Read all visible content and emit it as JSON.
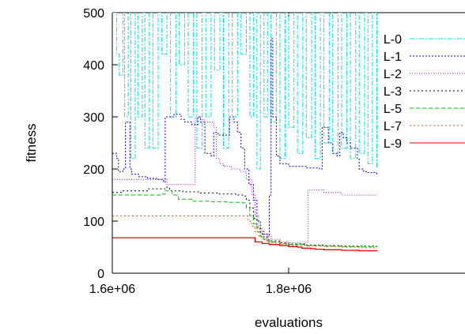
{
  "chart_data": {
    "type": "line",
    "title": "",
    "xlabel": "evaluations",
    "ylabel": "fitness",
    "xlim": [
      1600000,
      2000000
    ],
    "ylim": [
      0,
      500
    ],
    "x_ticks": [
      1600000,
      1800000
    ],
    "x_tick_labels": [
      "1.6e+06",
      "1.8e+06"
    ],
    "y_ticks": [
      0,
      100,
      200,
      300,
      400,
      500
    ],
    "y_tick_labels": [
      "0",
      "100",
      "200",
      "300",
      "400",
      "500"
    ],
    "grid": false,
    "legend_position": "right",
    "series": [
      {
        "name": "L-0",
        "color": "#00e0e0",
        "dash": "6,2,2,2",
        "x": [
          1600000,
          1605000,
          1608000,
          1612000,
          1614000,
          1618000,
          1621000,
          1626000,
          1629000,
          1634000,
          1637000,
          1642000,
          1646000,
          1652000,
          1656000,
          1662000,
          1666000,
          1672000,
          1676000,
          1682000,
          1686000,
          1692000,
          1696000,
          1702000,
          1706000,
          1712000,
          1716000,
          1722000,
          1726000,
          1732000,
          1736000,
          1742000,
          1746000,
          1752000,
          1756000,
          1760000,
          1764000,
          1768000,
          1772000,
          1776000,
          1780000,
          1786000,
          1790000,
          1796000,
          1800000,
          1806000,
          1810000,
          1816000,
          1820000,
          1826000,
          1830000,
          1836000,
          1840000,
          1846000,
          1850000,
          1856000,
          1860000,
          1866000,
          1870000,
          1876000,
          1880000,
          1886000,
          1890000,
          1895000,
          1900000
        ],
        "y": [
          500,
          420,
          380,
          500,
          300,
          500,
          220,
          500,
          300,
          500,
          240,
          500,
          240,
          500,
          420,
          500,
          300,
          500,
          400,
          500,
          300,
          500,
          240,
          500,
          300,
          500,
          390,
          500,
          240,
          500,
          300,
          500,
          420,
          500,
          300,
          500,
          200,
          500,
          300,
          500,
          290,
          500,
          220,
          500,
          280,
          500,
          230,
          500,
          260,
          500,
          220,
          500,
          250,
          500,
          230,
          500,
          240,
          500,
          220,
          500,
          230,
          500,
          210,
          500,
          200
        ]
      },
      {
        "name": "L-1",
        "color": "#0000cc",
        "dash": "2,2",
        "x": [
          1600000,
          1605000,
          1607000,
          1612000,
          1615000,
          1620000,
          1622000,
          1630000,
          1640000,
          1650000,
          1658000,
          1660000,
          1670000,
          1678000,
          1682000,
          1690000,
          1697000,
          1700000,
          1705000,
          1712000,
          1715000,
          1720000,
          1728000,
          1733000,
          1738000,
          1742000,
          1746000,
          1750000,
          1755000,
          1760000,
          1764000,
          1768000,
          1772000,
          1776000,
          1778000,
          1780000,
          1782000,
          1786000,
          1790000,
          1800000,
          1820000,
          1835000,
          1838000,
          1845000,
          1850000,
          1855000,
          1858000,
          1862000,
          1866000,
          1870000,
          1878000,
          1880000,
          1885000,
          1890000,
          1900000
        ],
        "y": [
          230,
          220,
          195,
          200,
          290,
          200,
          190,
          185,
          182,
          180,
          175,
          300,
          305,
          295,
          290,
          285,
          300,
          290,
          230,
          225,
          270,
          265,
          265,
          300,
          290,
          270,
          240,
          200,
          170,
          140,
          100,
          80,
          75,
          70,
          150,
          450,
          300,
          225,
          210,
          205,
          202,
          200,
          280,
          250,
          230,
          225,
          270,
          260,
          250,
          240,
          220,
          200,
          195,
          193,
          190
        ]
      },
      {
        "name": "L-2",
        "color": "#cc00cc",
        "dash": "1,2",
        "x": [
          1600000,
          1630000,
          1660000,
          1662000,
          1692000,
          1694000,
          1700000,
          1705000,
          1715000,
          1718000,
          1722000,
          1726000,
          1735000,
          1745000,
          1752000,
          1758000,
          1762000,
          1766000,
          1770000,
          1775000,
          1780000,
          1790000,
          1800000,
          1815000,
          1818000,
          1822000,
          1840000,
          1860000,
          1880000,
          1900000
        ],
        "y": [
          180,
          180,
          180,
          170,
          170,
          300,
          295,
          290,
          280,
          220,
          210,
          205,
          200,
          195,
          180,
          150,
          110,
          85,
          75,
          70,
          65,
          60,
          58,
          57,
          60,
          160,
          155,
          150,
          150,
          150
        ]
      },
      {
        "name": "L-3",
        "color": "#000000",
        "dash": "2,3",
        "x": [
          1600000,
          1610000,
          1640000,
          1660000,
          1665000,
          1680000,
          1700000,
          1720000,
          1740000,
          1748000,
          1752000,
          1756000,
          1760000,
          1764000,
          1768000,
          1772000,
          1776000,
          1780000,
          1790000,
          1800000,
          1820000,
          1840000,
          1860000,
          1880000,
          1900000
        ],
        "y": [
          155,
          158,
          162,
          165,
          158,
          156,
          154,
          152,
          150,
          148,
          140,
          125,
          105,
          88,
          75,
          68,
          64,
          62,
          58,
          56,
          54,
          53,
          52,
          52,
          52
        ]
      },
      {
        "name": "L-5",
        "color": "#00bb00",
        "dash": "5,3",
        "x": [
          1600000,
          1620000,
          1640000,
          1655000,
          1660000,
          1668000,
          1675000,
          1690000,
          1710000,
          1730000,
          1748000,
          1752000,
          1756000,
          1760000,
          1764000,
          1768000,
          1772000,
          1776000,
          1780000,
          1790000,
          1800000,
          1820000,
          1840000,
          1860000,
          1880000,
          1900000
        ],
        "y": [
          150,
          150,
          150,
          152,
          158,
          150,
          142,
          138,
          137,
          136,
          135,
          125,
          110,
          95,
          80,
          70,
          65,
          62,
          60,
          57,
          55,
          53,
          52,
          51,
          51,
          50
        ]
      },
      {
        "name": "L-7",
        "color": "#ff4400",
        "dash": "2,3",
        "x": [
          1600000,
          1650000,
          1700000,
          1750000,
          1754000,
          1758000,
          1762000,
          1766000,
          1770000,
          1775000,
          1780000,
          1790000,
          1800000,
          1820000,
          1840000,
          1860000,
          1880000,
          1900000
        ],
        "y": [
          110,
          110,
          110,
          110,
          100,
          90,
          80,
          72,
          65,
          60,
          58,
          55,
          53,
          52,
          51,
          50,
          49,
          48
        ]
      },
      {
        "name": "L-9",
        "color": "#ee0000",
        "dash": "",
        "x": [
          1600000,
          1650000,
          1700000,
          1757000,
          1762000,
          1770000,
          1778000,
          1790000,
          1800000,
          1810000,
          1815000,
          1825000,
          1830000,
          1840000,
          1850000,
          1860000,
          1870000,
          1880000,
          1890000,
          1900000
        ],
        "y": [
          68,
          68,
          68,
          68,
          60,
          57,
          55,
          53,
          51,
          50,
          48,
          47,
          46,
          45,
          45,
          44,
          44,
          43,
          43,
          42
        ]
      }
    ]
  }
}
